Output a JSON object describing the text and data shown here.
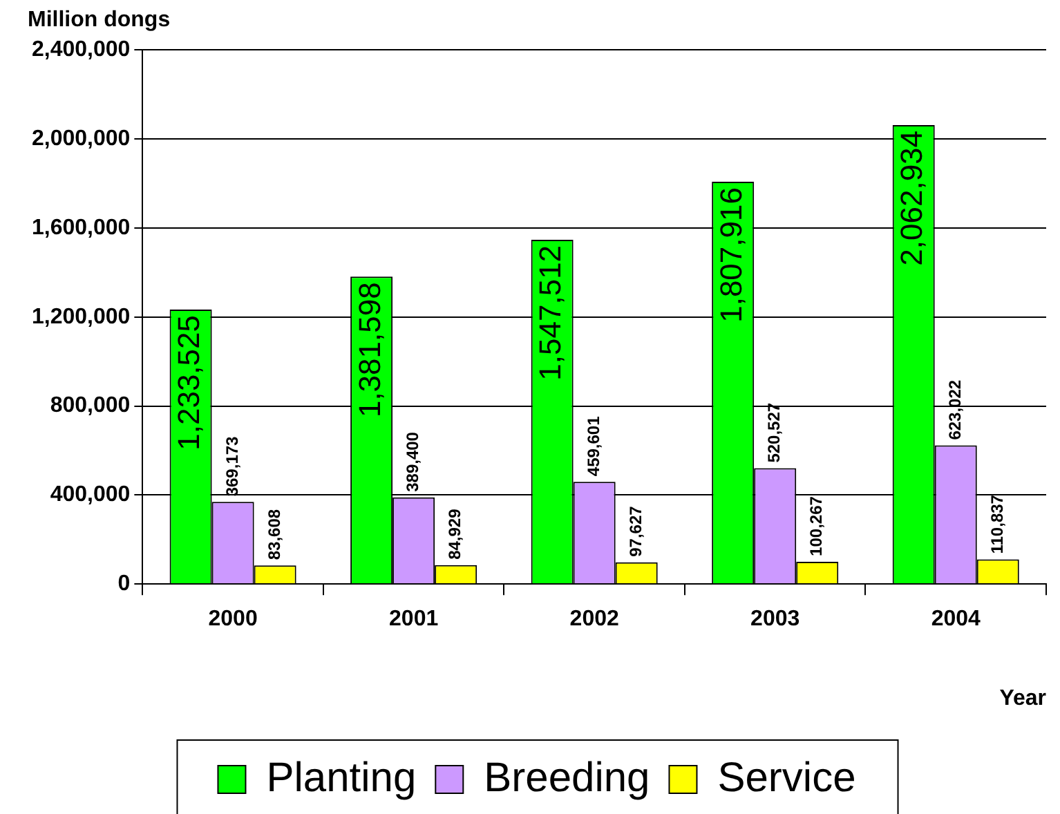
{
  "chart_data": {
    "type": "bar",
    "ylabel": "Million dongs",
    "xlabel": "Year",
    "categories": [
      "2000",
      "2001",
      "2002",
      "2003",
      "2004"
    ],
    "series": [
      {
        "name": "Planting",
        "color": "#00ff00",
        "values": [
          1233525,
          1381598,
          1547512,
          1807916,
          2062934
        ],
        "value_labels": [
          "1,233,525",
          "1,381,598",
          "1,547,512",
          "1,807,916",
          "2,062,934"
        ]
      },
      {
        "name": "Breeding",
        "color": "#cc99ff",
        "values": [
          369173,
          389400,
          459601,
          520527,
          623022
        ],
        "value_labels": [
          "369,173",
          "389,400",
          "459,601",
          "520,527",
          "623,022"
        ]
      },
      {
        "name": "Service",
        "color": "#ffff00",
        "values": [
          83608,
          84929,
          97627,
          100267,
          110837
        ],
        "value_labels": [
          "83,608",
          "84,929",
          "97,627",
          "100,267",
          "110,837"
        ]
      }
    ],
    "ylim": [
      0,
      2400000
    ],
    "yticks": [
      0,
      {
        "value": 400000,
        "label": "400,000"
      },
      {
        "value": 800000,
        "label": "800,000"
      },
      {
        "value": 1200000,
        "label": "1,200,000"
      },
      {
        "value": 1600000,
        "label": "1,600,000"
      },
      {
        "value": 2000000,
        "label": "2,000,000"
      },
      {
        "value": 2400000,
        "label": "2,400,000"
      }
    ],
    "grid": "y",
    "legend": "bottom"
  }
}
